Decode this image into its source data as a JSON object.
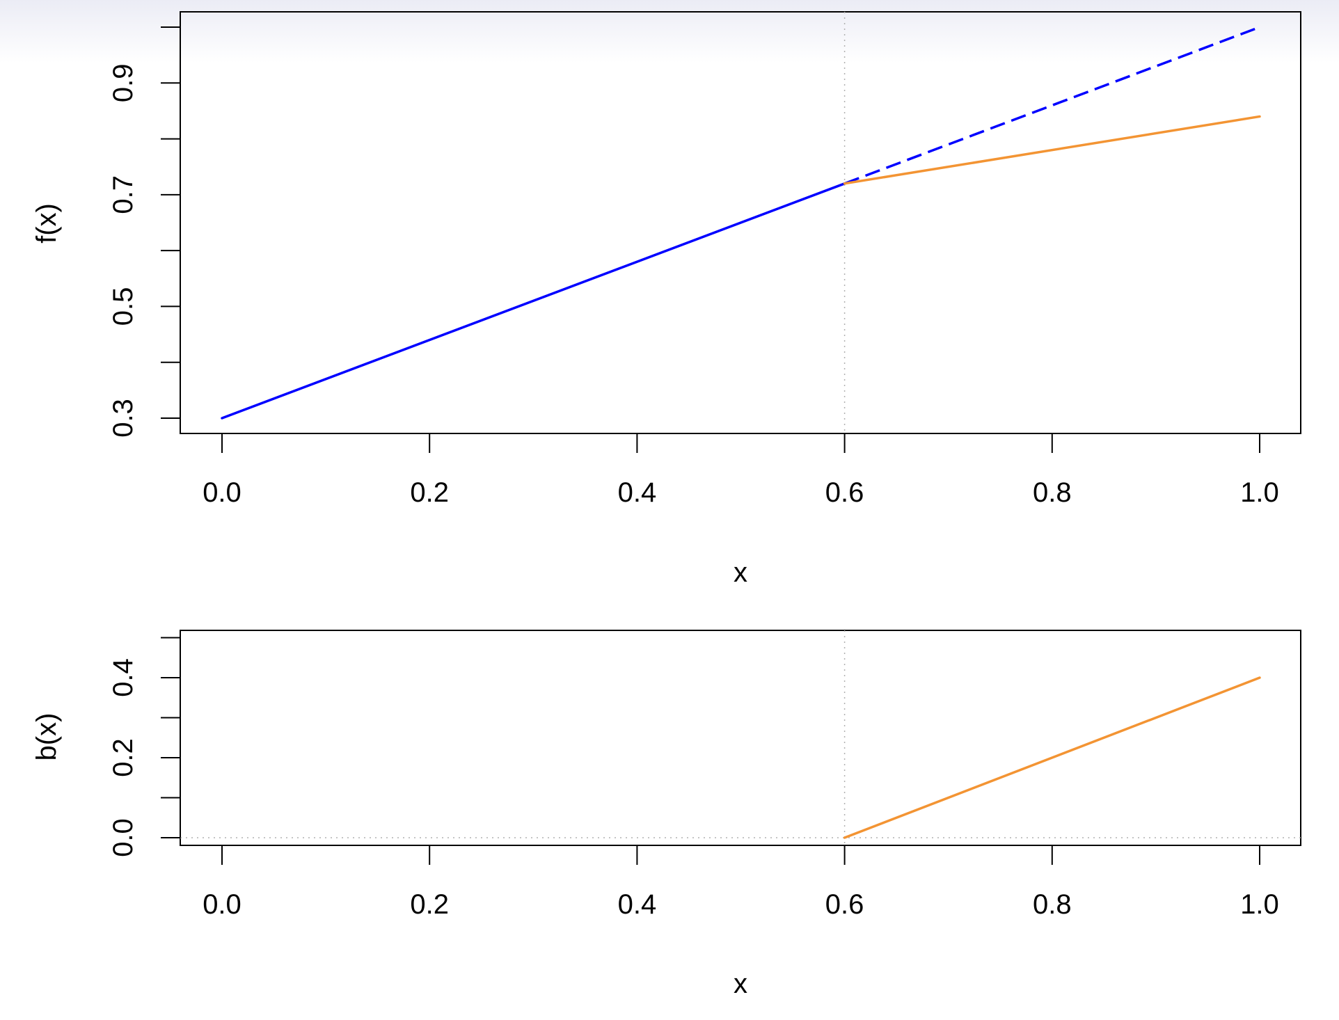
{
  "chart_data": [
    {
      "type": "line",
      "xlabel": "x",
      "ylabel": "f(x)",
      "xlim": [
        -0.04,
        1.04
      ],
      "ylim": [
        0.273,
        1.027
      ],
      "x_ticks": [
        0.0,
        0.2,
        0.4,
        0.6,
        0.8,
        1.0
      ],
      "x_tick_labels": [
        "0.0",
        "0.2",
        "0.4",
        "0.6",
        "0.8",
        "1.0"
      ],
      "y_ticks": [
        0.3,
        0.4,
        0.5,
        0.6,
        0.7,
        0.8,
        0.9,
        1.0
      ],
      "y_tick_labels": [
        {
          "v": 0.3,
          "t": "0.3"
        },
        {
          "v": 0.5,
          "t": "0.5"
        },
        {
          "v": 0.7,
          "t": "0.7"
        },
        {
          "v": 0.9,
          "t": "0.9"
        }
      ],
      "grid": false,
      "reference_lines": [
        {
          "orientation": "vertical",
          "value": 0.6,
          "style": "dotted",
          "color": "#b0b0b0"
        }
      ],
      "series": [
        {
          "x": [
            0.0,
            0.6
          ],
          "y": [
            0.3,
            0.72
          ],
          "color": "#0000ff",
          "style": "solid"
        },
        {
          "x": [
            0.6,
            1.0
          ],
          "y": [
            0.72,
            1.0
          ],
          "color": "#0000ff",
          "style": "dashed"
        },
        {
          "x": [
            0.6,
            1.0
          ],
          "y": [
            0.72,
            0.84
          ],
          "color": "#f39433",
          "style": "solid"
        }
      ]
    },
    {
      "type": "line",
      "xlabel": "x",
      "ylabel": "b(x)",
      "xlim": [
        -0.04,
        1.04
      ],
      "ylim": [
        -0.02,
        0.52
      ],
      "x_ticks": [
        0.0,
        0.2,
        0.4,
        0.6,
        0.8,
        1.0
      ],
      "x_tick_labels": [
        "0.0",
        "0.2",
        "0.4",
        "0.6",
        "0.8",
        "1.0"
      ],
      "y_ticks": [
        0.0,
        0.1,
        0.2,
        0.3,
        0.4,
        0.5
      ],
      "y_tick_labels": [
        {
          "v": 0.0,
          "t": "0.0"
        },
        {
          "v": 0.2,
          "t": "0.2"
        },
        {
          "v": 0.4,
          "t": "0.4"
        }
      ],
      "grid": false,
      "reference_lines": [
        {
          "orientation": "vertical",
          "value": 0.6,
          "style": "dotted",
          "color": "#b0b0b0"
        },
        {
          "orientation": "horizontal",
          "value": 0.0,
          "style": "dotted",
          "color": "#b0b0b0"
        }
      ],
      "series": [
        {
          "x": [
            0.6,
            1.0
          ],
          "y": [
            0.0,
            0.4
          ],
          "color": "#f39433",
          "style": "solid"
        }
      ]
    }
  ]
}
